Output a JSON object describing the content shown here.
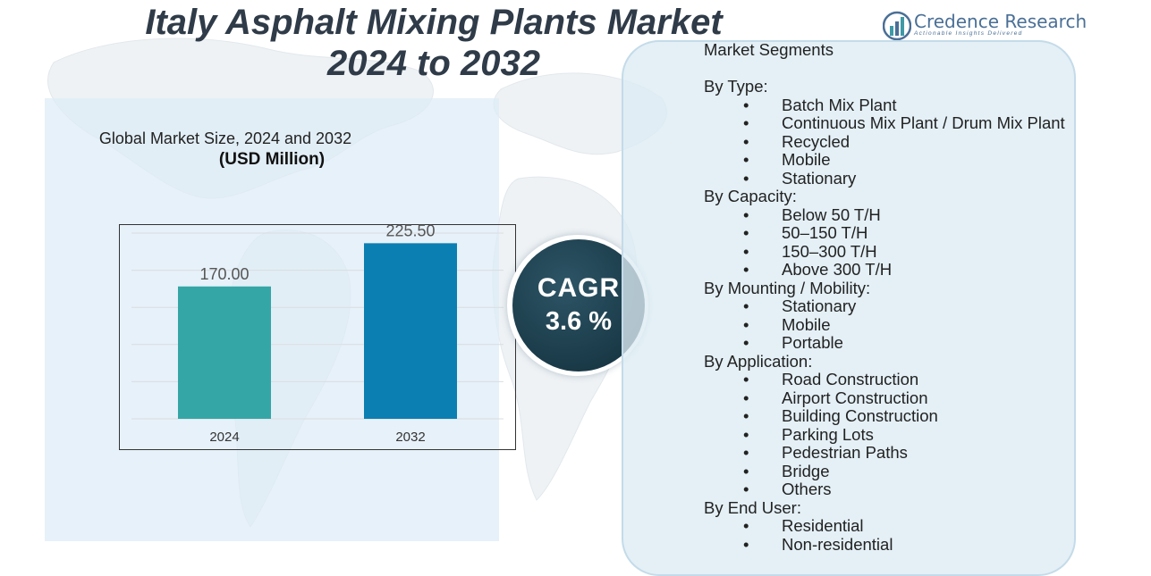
{
  "title": {
    "line1": "Italy Asphalt Mixing Plants Market",
    "line2": "2024 to 2032"
  },
  "brand": {
    "name": "Credence Research",
    "tagline": "Actionable Insights Delivered"
  },
  "colors": {
    "bar_2024": "#35a6a6",
    "bar_2032": "#0b7fb2",
    "title": "#2f3b48",
    "cagr_bg": "#1e4250"
  },
  "chart_data": {
    "type": "bar",
    "title": "Global Market Size,  2024 and 2032",
    "subtitle": "(USD Million)",
    "categories": [
      "2024",
      "2032"
    ],
    "values": [
      170.0,
      225.5
    ],
    "value_labels": [
      "170.00",
      "225.50"
    ],
    "ylim": [
      0,
      250
    ],
    "grid": true,
    "xlabel": "",
    "ylabel": ""
  },
  "cagr": {
    "label": "CAGR",
    "value": "3.6 %"
  },
  "segments": {
    "heading": "Market Segments",
    "groups": [
      {
        "name": "By Type:",
        "items": [
          "Batch Mix Plant",
          "Continuous Mix Plant / Drum Mix Plant",
          "Recycled",
          "Mobile",
          "Stationary"
        ]
      },
      {
        "name": "By Capacity:",
        "items": [
          "Below 50 T/H",
          "50–150 T/H",
          "150–300 T/H",
          "Above 300 T/H"
        ]
      },
      {
        "name": "By Mounting / Mobility:",
        "items": [
          "Stationary",
          "Mobile",
          "Portable"
        ]
      },
      {
        "name": "By Application:",
        "items": [
          "Road Construction",
          "Airport Construction",
          "Building Construction",
          "Parking Lots",
          "Pedestrian Paths",
          "Bridge",
          "Others"
        ]
      },
      {
        "name": "By End User:",
        "items": [
          "Residential",
          "Non-residential"
        ]
      }
    ]
  }
}
